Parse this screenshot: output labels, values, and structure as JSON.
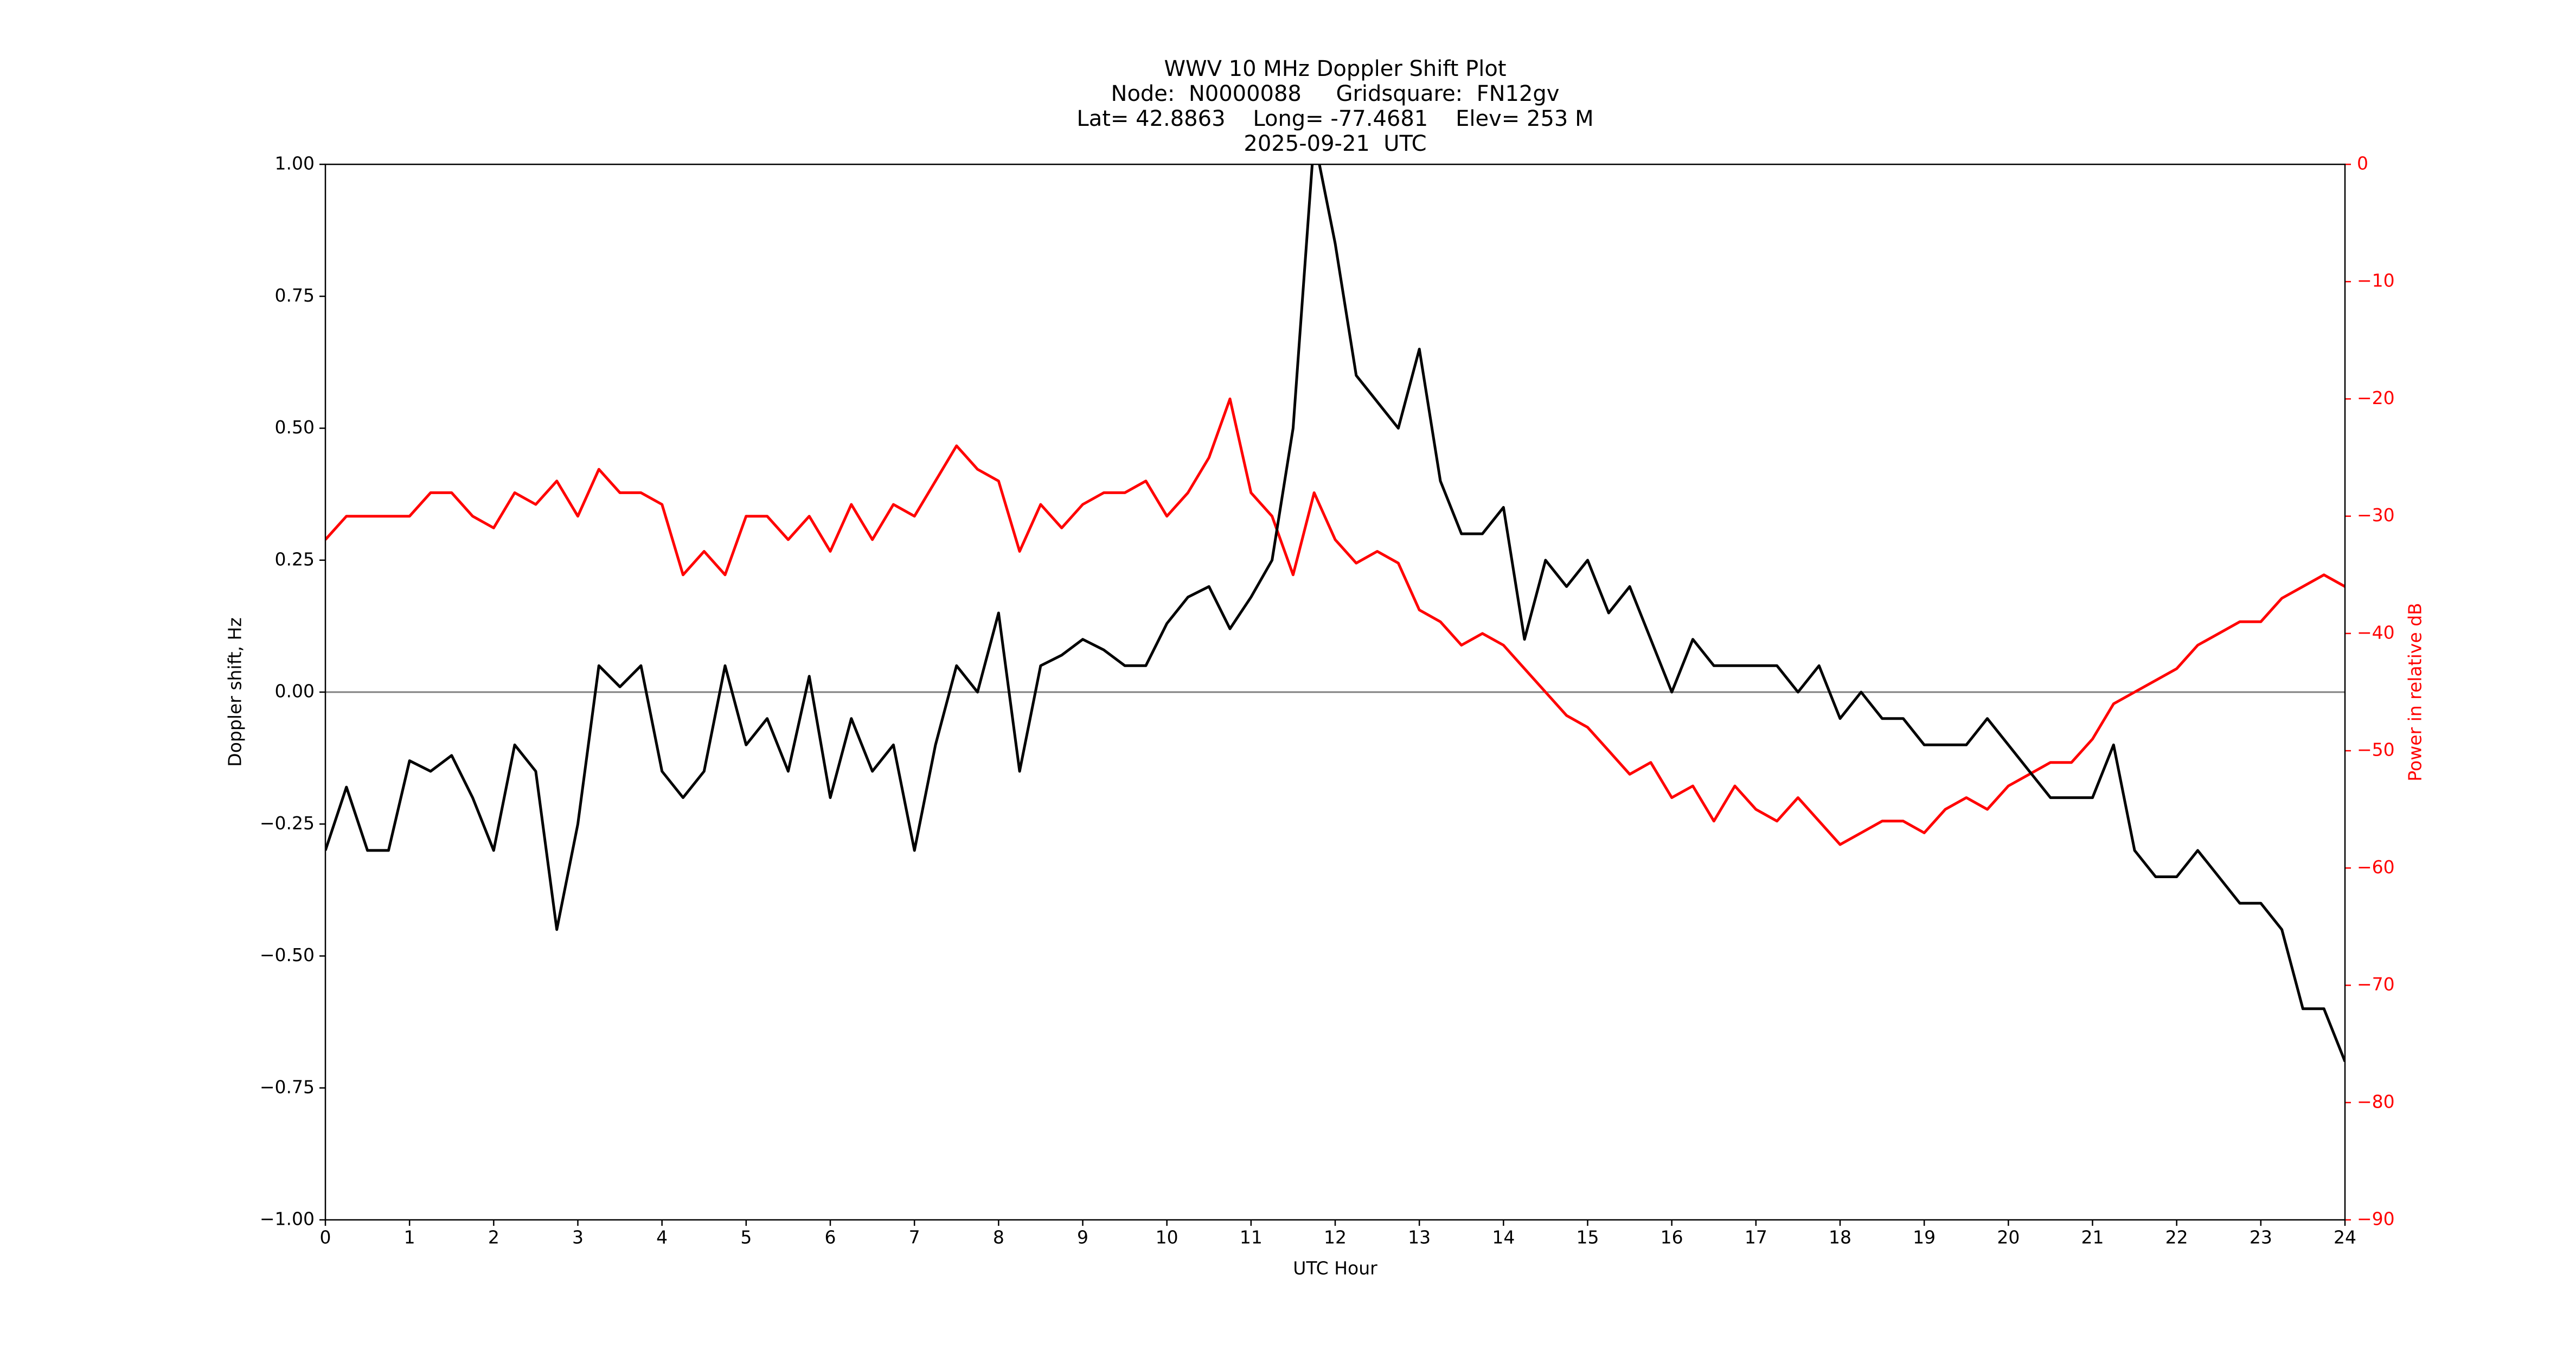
{
  "chart_data": {
    "type": "line",
    "title": [
      "WWV 10 MHz Doppler Shift Plot",
      "Node:  N0000088     Gridsquare:  FN12gv",
      "Lat= 42.8863    Long= -77.4681    Elev= 253 M",
      "2025-09-21  UTC"
    ],
    "x_label": "UTC Hour",
    "y_label": "Doppler shift, Hz",
    "y2_label": "Power in relative dB",
    "y2_color": "#ff0000",
    "x": [
      0,
      0.25,
      0.5,
      0.75,
      1,
      1.25,
      1.5,
      1.75,
      2,
      2.25,
      2.5,
      2.75,
      3,
      3.25,
      3.5,
      3.75,
      4,
      4.25,
      4.5,
      4.75,
      5,
      5.25,
      5.5,
      5.75,
      6,
      6.25,
      6.5,
      6.75,
      7,
      7.25,
      7.5,
      7.75,
      8,
      8.25,
      8.5,
      8.75,
      9,
      9.25,
      9.5,
      9.75,
      10,
      10.25,
      10.5,
      10.75,
      11,
      11.25,
      11.5,
      11.75,
      12,
      12.25,
      12.5,
      12.75,
      13,
      13.25,
      13.5,
      13.75,
      14,
      14.25,
      14.5,
      14.75,
      15,
      15.25,
      15.5,
      15.75,
      16,
      16.25,
      16.5,
      16.75,
      17,
      17.25,
      17.5,
      17.75,
      18,
      18.25,
      18.5,
      18.75,
      19,
      19.25,
      19.5,
      19.75,
      20,
      20.25,
      20.5,
      20.75,
      21,
      21.25,
      21.5,
      21.75,
      22,
      22.25,
      22.5,
      22.75,
      23,
      23.25,
      23.5,
      23.75,
      24
    ],
    "series": [
      {
        "color": "#000000",
        "axis": "y",
        "values": [
          -0.3,
          -0.18,
          -0.3,
          -0.3,
          -0.13,
          -0.15,
          -0.12,
          -0.2,
          -0.3,
          -0.1,
          -0.15,
          -0.45,
          -0.25,
          0.05,
          0.01,
          0.05,
          -0.15,
          -0.2,
          -0.15,
          0.05,
          -0.1,
          -0.05,
          -0.15,
          0.03,
          -0.2,
          -0.05,
          -0.15,
          -0.1,
          -0.3,
          -0.1,
          0.05,
          0,
          0.15,
          -0.15,
          0.05,
          0.07,
          0.1,
          0.08,
          0.05,
          0.05,
          0.13,
          0.18,
          0.2,
          0.12,
          0.18,
          0.25,
          0.5,
          1.05,
          0.85,
          0.6,
          0.55,
          0.5,
          0.65,
          0.4,
          0.3,
          0.3,
          0.35,
          0.1,
          0.25,
          0.2,
          0.25,
          0.15,
          0.2,
          0.1,
          0,
          0.1,
          0.05,
          0.05,
          0.05,
          0.05,
          0,
          0.05,
          -0.05,
          0,
          -0.05,
          -0.05,
          -0.1,
          -0.1,
          -0.1,
          -0.05,
          -0.1,
          -0.15,
          -0.2,
          -0.2,
          -0.2,
          -0.1,
          -0.3,
          -0.35,
          -0.35,
          -0.3,
          -0.35,
          -0.4,
          -0.4,
          -0.45,
          -0.6,
          -0.6,
          -0.7
        ]
      },
      {
        "color": "#ff0000",
        "axis": "y2",
        "values": [
          -32,
          -30,
          -30,
          -30,
          -30,
          -28,
          -28,
          -30,
          -31,
          -28,
          -29,
          -27,
          -30,
          -26,
          -28,
          -28,
          -29,
          -35,
          -33,
          -35,
          -30,
          -30,
          -32,
          -30,
          -33,
          -29,
          -32,
          -29,
          -30,
          -27,
          -24,
          -26,
          -27,
          -33,
          -29,
          -31,
          -29,
          -28,
          -28,
          -27,
          -30,
          -28,
          -25,
          -20,
          -28,
          -30,
          -35,
          -28,
          -32,
          -34,
          -33,
          -34,
          -38,
          -39,
          -41,
          -40,
          -41,
          -43,
          -45,
          -47,
          -48,
          -50,
          -52,
          -51,
          -54,
          -53,
          -56,
          -53,
          -55,
          -56,
          -54,
          -56,
          -58,
          -57,
          -56,
          -56,
          -57,
          -55,
          -54,
          -55,
          -53,
          -52,
          -51,
          -51,
          -49,
          -46,
          -45,
          -44,
          -43,
          -41,
          -40,
          -39,
          -39,
          -37,
          -36,
          -35,
          -36
        ]
      }
    ],
    "xlim": [
      0,
      24
    ],
    "xticks": [
      0,
      1,
      2,
      3,
      4,
      5,
      6,
      7,
      8,
      9,
      10,
      11,
      12,
      13,
      14,
      15,
      16,
      17,
      18,
      19,
      20,
      21,
      22,
      23,
      24
    ],
    "ylim": [
      -1,
      1
    ],
    "yticks": [
      {
        "value": -1,
        "label": "−1.00"
      },
      {
        "value": -0.75,
        "label": "−0.75"
      },
      {
        "value": -0.5,
        "label": "−0.50"
      },
      {
        "value": -0.25,
        "label": "−0.25"
      },
      {
        "value": 0,
        "label": "0.00"
      },
      {
        "value": 0.25,
        "label": "0.25"
      },
      {
        "value": 0.5,
        "label": "0.50"
      },
      {
        "value": 0.75,
        "label": "0.75"
      },
      {
        "value": 1,
        "label": "1.00"
      }
    ],
    "y2lim": [
      -90,
      0
    ],
    "y2ticks": [
      {
        "value": -90,
        "label": "−90"
      },
      {
        "value": -80,
        "label": "−80"
      },
      {
        "value": -70,
        "label": "−70"
      },
      {
        "value": -60,
        "label": "−60"
      },
      {
        "value": -50,
        "label": "−50"
      },
      {
        "value": -40,
        "label": "−40"
      },
      {
        "value": -30,
        "label": "−30"
      },
      {
        "value": -20,
        "label": "−20"
      },
      {
        "value": -10,
        "label": "−10"
      },
      0
    ],
    "hlines": [
      0
    ],
    "hline_color": "#808080"
  }
}
